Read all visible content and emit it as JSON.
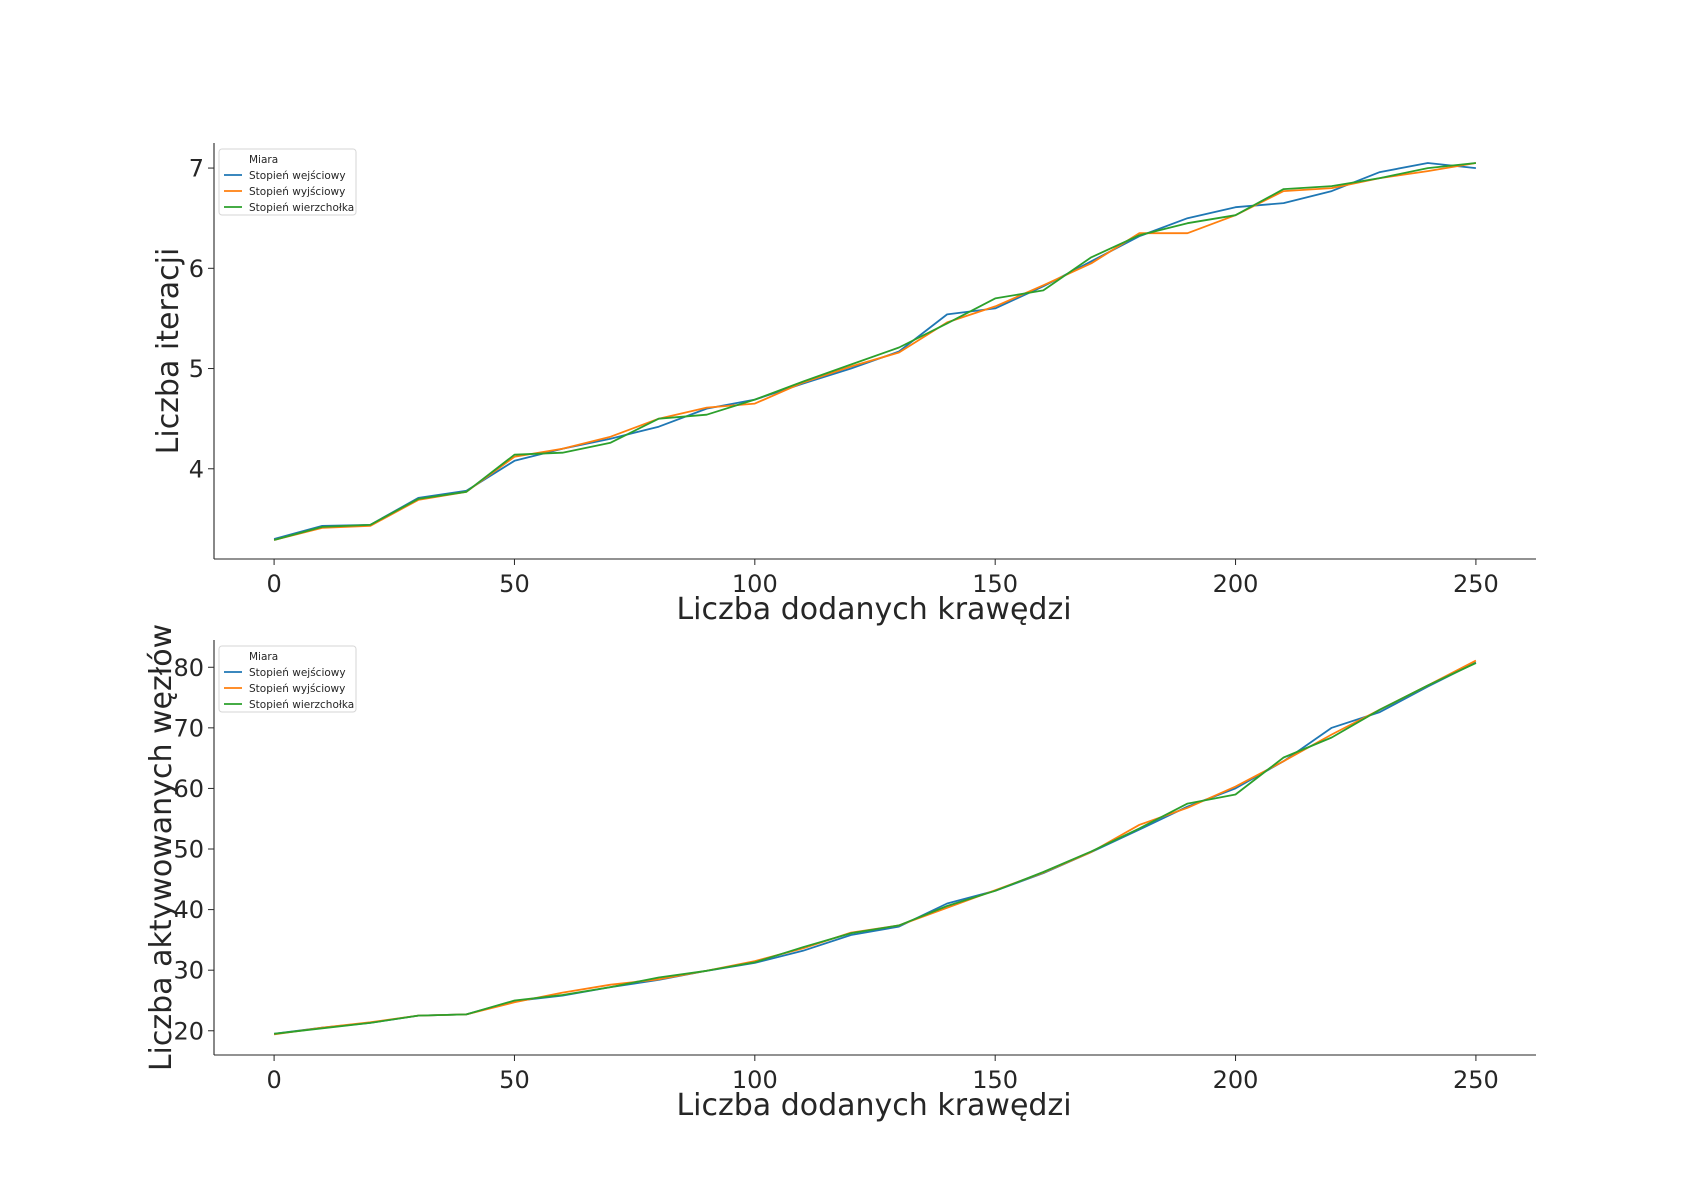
{
  "chart_data": [
    {
      "type": "line",
      "xlabel": "Liczba dodanych krawędzi",
      "ylabel": "Liczba iteracji",
      "xlim": [
        -12.5,
        262.5
      ],
      "ylim": [
        3.1,
        7.25
      ],
      "xticks": [
        0,
        50,
        100,
        150,
        200,
        250
      ],
      "yticks": [
        4,
        5,
        6,
        7
      ],
      "grid": false,
      "legend": {
        "title": "Miara",
        "placement": "top-left"
      },
      "x": [
        0,
        10,
        20,
        30,
        40,
        50,
        60,
        70,
        80,
        90,
        100,
        110,
        120,
        130,
        140,
        150,
        160,
        170,
        180,
        190,
        200,
        210,
        220,
        230,
        240,
        250
      ],
      "series": [
        {
          "name": "Stopień wejściowy",
          "color": "#1f77b4",
          "values": [
            3.3,
            3.43,
            3.44,
            3.71,
            3.78,
            4.08,
            4.2,
            4.3,
            4.42,
            4.6,
            4.69,
            4.85,
            5.0,
            5.17,
            5.54,
            5.6,
            5.82,
            6.07,
            6.32,
            6.5,
            6.61,
            6.65,
            6.77,
            6.96,
            7.05,
            7.0
          ]
        },
        {
          "name": "Stopień wyjściowy",
          "color": "#ff7f0e",
          "values": [
            3.29,
            3.41,
            3.43,
            3.69,
            3.77,
            4.12,
            4.2,
            4.32,
            4.5,
            4.61,
            4.65,
            4.86,
            5.02,
            5.16,
            5.46,
            5.62,
            5.83,
            6.05,
            6.35,
            6.35,
            6.53,
            6.77,
            6.8,
            6.9,
            6.97,
            7.05
          ]
        },
        {
          "name": "Stopień wierzchołka",
          "color": "#2ca02c",
          "values": [
            3.29,
            3.42,
            3.44,
            3.7,
            3.77,
            4.14,
            4.16,
            4.26,
            4.5,
            4.54,
            4.69,
            4.87,
            5.04,
            5.21,
            5.45,
            5.7,
            5.78,
            6.11,
            6.33,
            6.45,
            6.53,
            6.79,
            6.82,
            6.9,
            7.0,
            7.05
          ]
        }
      ]
    },
    {
      "type": "line",
      "xlabel": "Liczba dodanych krawędzi",
      "ylabel": "Liczba aktywowanych węzłów",
      "xlim": [
        -12.5,
        262.5
      ],
      "ylim": [
        16,
        84.5
      ],
      "xticks": [
        0,
        50,
        100,
        150,
        200,
        250
      ],
      "yticks": [
        20,
        30,
        40,
        50,
        60,
        70,
        80
      ],
      "grid": false,
      "legend": {
        "title": "Miara",
        "placement": "top-left"
      },
      "x": [
        0,
        10,
        20,
        30,
        40,
        50,
        60,
        70,
        80,
        90,
        100,
        110,
        120,
        130,
        140,
        150,
        160,
        170,
        180,
        190,
        200,
        210,
        220,
        230,
        240,
        250
      ],
      "series": [
        {
          "name": "Stopień wejściowy",
          "color": "#1f77b4",
          "values": [
            19.5,
            20.5,
            21.3,
            22.5,
            22.7,
            24.9,
            25.8,
            27.2,
            28.4,
            29.9,
            31.2,
            33.2,
            35.8,
            37.2,
            41.0,
            43.1,
            46.0,
            49.5,
            53.2,
            57.0,
            60.0,
            64.5,
            70.0,
            72.6,
            76.8,
            80.8
          ]
        },
        {
          "name": "Stopień wyjściowy",
          "color": "#ff7f0e",
          "values": [
            19.4,
            20.5,
            21.4,
            22.5,
            22.7,
            24.7,
            26.3,
            27.6,
            28.5,
            29.9,
            31.5,
            33.6,
            36.2,
            37.4,
            40.3,
            43.2,
            46.1,
            49.5,
            54.0,
            56.8,
            60.3,
            64.5,
            68.9,
            73.0,
            77.0,
            81.1
          ]
        },
        {
          "name": "Stopień wierzchołka",
          "color": "#2ca02c",
          "values": [
            19.5,
            20.4,
            21.3,
            22.5,
            22.7,
            25.0,
            25.9,
            27.2,
            28.8,
            29.9,
            31.3,
            33.8,
            36.1,
            37.4,
            40.6,
            43.1,
            46.2,
            49.6,
            53.4,
            57.5,
            59.0,
            65.1,
            68.4,
            73.0,
            77.0,
            80.7
          ]
        }
      ]
    }
  ]
}
